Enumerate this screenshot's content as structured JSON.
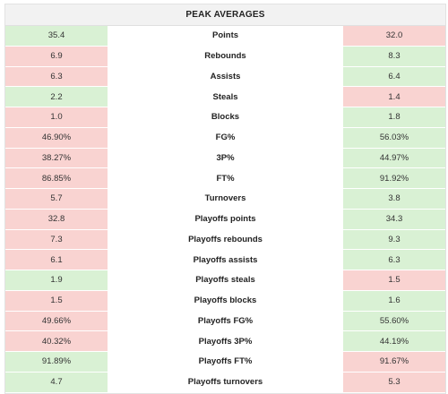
{
  "title": "PEAK AVERAGES",
  "colors": {
    "better": "#d9f1d4",
    "worse": "#f9d3d1"
  },
  "rows": [
    {
      "label": "Points",
      "left": "35.4",
      "right": "32.0",
      "left_better": true
    },
    {
      "label": "Rebounds",
      "left": "6.9",
      "right": "8.3",
      "left_better": false
    },
    {
      "label": "Assists",
      "left": "6.3",
      "right": "6.4",
      "left_better": false
    },
    {
      "label": "Steals",
      "left": "2.2",
      "right": "1.4",
      "left_better": true
    },
    {
      "label": "Blocks",
      "left": "1.0",
      "right": "1.8",
      "left_better": false
    },
    {
      "label": "FG%",
      "left": "46.90%",
      "right": "56.03%",
      "left_better": false
    },
    {
      "label": "3P%",
      "left": "38.27%",
      "right": "44.97%",
      "left_better": false
    },
    {
      "label": "FT%",
      "left": "86.85%",
      "right": "91.92%",
      "left_better": false
    },
    {
      "label": "Turnovers",
      "left": "5.7",
      "right": "3.8",
      "left_better": false
    },
    {
      "label": "Playoffs points",
      "left": "32.8",
      "right": "34.3",
      "left_better": false
    },
    {
      "label": "Playoffs rebounds",
      "left": "7.3",
      "right": "9.3",
      "left_better": false
    },
    {
      "label": "Playoffs assists",
      "left": "6.1",
      "right": "6.3",
      "left_better": false
    },
    {
      "label": "Playoffs steals",
      "left": "1.9",
      "right": "1.5",
      "left_better": true
    },
    {
      "label": "Playoffs blocks",
      "left": "1.5",
      "right": "1.6",
      "left_better": false
    },
    {
      "label": "Playoffs FG%",
      "left": "49.66%",
      "right": "55.60%",
      "left_better": false
    },
    {
      "label": "Playoffs 3P%",
      "left": "40.32%",
      "right": "44.19%",
      "left_better": false
    },
    {
      "label": "Playoffs FT%",
      "left": "91.89%",
      "right": "91.67%",
      "left_better": true
    },
    {
      "label": "Playoffs turnovers",
      "left": "4.7",
      "right": "5.3",
      "left_better": true
    }
  ]
}
